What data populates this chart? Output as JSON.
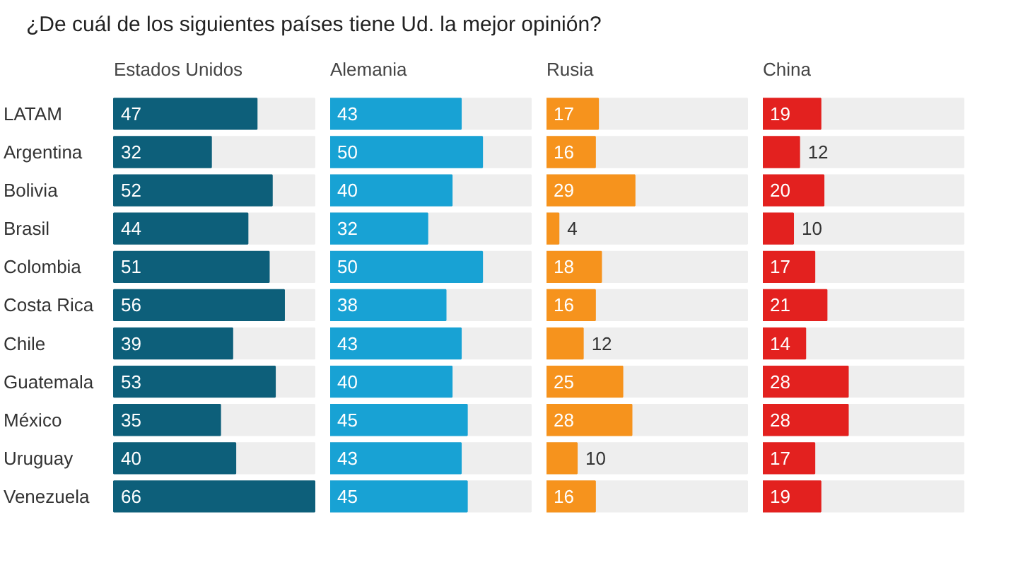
{
  "chart_data": [
    {
      "type": "bar",
      "orientation": "horizontal",
      "title": "Estados Unidos",
      "annotations": [
        "¿De cuál de los siguientes países tiene Ud. la mejor opinión?"
      ],
      "categories": [
        "LATAM",
        "Argentina",
        "Bolivia",
        "Brasil",
        "Colombia",
        "Costa Rica",
        "Chile",
        "Guatemala",
        "México",
        "Uruguay",
        "Venezuela"
      ],
      "values": [
        47,
        32,
        52,
        44,
        51,
        56,
        39,
        53,
        35,
        40,
        66
      ],
      "color": "#0d5f7a",
      "data_labels": true
    },
    {
      "type": "bar",
      "orientation": "horizontal",
      "title": "Alemania",
      "categories": [
        "LATAM",
        "Argentina",
        "Bolivia",
        "Brasil",
        "Colombia",
        "Costa Rica",
        "Chile",
        "Guatemala",
        "México",
        "Uruguay",
        "Venezuela"
      ],
      "values": [
        43,
        50,
        40,
        32,
        50,
        38,
        43,
        40,
        45,
        43,
        45
      ],
      "color": "#18a2d4",
      "data_labels": true,
      "tick_labels": false
    },
    {
      "type": "bar",
      "orientation": "horizontal",
      "title": "Rusia",
      "categories": [
        "LATAM",
        "Argentina",
        "Bolivia",
        "Brasil",
        "Colombia",
        "Costa Rica",
        "Chile",
        "Guatemala",
        "México",
        "Uruguay",
        "Venezuela"
      ],
      "values": [
        17,
        16,
        29,
        4,
        18,
        16,
        12,
        25,
        28,
        10,
        16
      ],
      "color": "#f6931d",
      "data_labels": true,
      "tick_labels": false
    },
    {
      "type": "bar",
      "orientation": "horizontal",
      "title": "China",
      "categories": [
        "LATAM",
        "Argentina",
        "Bolivia",
        "Brasil",
        "Colombia",
        "Costa Rica",
        "Chile",
        "Guatemala",
        "México",
        "Uruguay",
        "Venezuela"
      ],
      "values": [
        19,
        12,
        20,
        10,
        17,
        21,
        14,
        28,
        28,
        17,
        19
      ],
      "color": "#e3211f",
      "data_labels": true,
      "tick_labels": false
    }
  ]
}
